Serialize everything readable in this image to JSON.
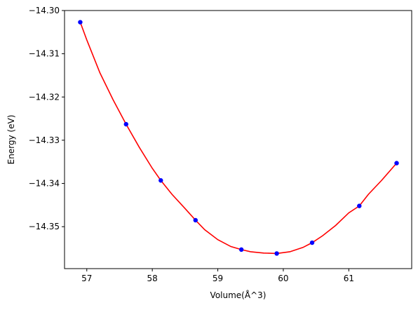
{
  "chart_data": {
    "type": "scatter",
    "title": "",
    "xlabel": "Volume(Å^3)",
    "ylabel": "Energy (eV)",
    "xlim": [
      56.66,
      61.96
    ],
    "ylim": [
      -14.3597,
      -14.3
    ],
    "x_ticks": [
      57,
      58,
      59,
      60,
      61
    ],
    "x_tick_labels": [
      "57",
      "58",
      "59",
      "60",
      "61"
    ],
    "y_ticks": [
      -14.3,
      -14.31,
      -14.32,
      -14.33,
      -14.34,
      -14.35
    ],
    "y_tick_labels": [
      "−14.30",
      "−14.31",
      "−14.32",
      "−14.33",
      "−14.34",
      "−14.35"
    ],
    "grid": false,
    "series": [
      {
        "kind": "points",
        "color": "#0000ff",
        "x": [
          56.9,
          57.6,
          58.13,
          58.66,
          59.36,
          59.9,
          60.44,
          61.16,
          61.73
        ],
        "y": [
          -14.3027,
          -14.3263,
          -14.3393,
          -14.3485,
          -14.3553,
          -14.3562,
          -14.3537,
          -14.3452,
          -14.3353
        ]
      },
      {
        "kind": "fit-curve",
        "color": "#ff0000",
        "x": [
          56.9,
          57.0,
          57.2,
          57.4,
          57.6,
          57.8,
          58.0,
          58.13,
          58.3,
          58.5,
          58.66,
          58.8,
          59.0,
          59.2,
          59.36,
          59.5,
          59.7,
          59.9,
          60.1,
          60.3,
          60.44,
          60.6,
          60.8,
          61.0,
          61.16,
          61.3,
          61.5,
          61.73
        ],
        "y": [
          -14.3027,
          -14.3068,
          -14.3144,
          -14.3206,
          -14.3263,
          -14.3316,
          -14.3365,
          -14.3393,
          -14.3425,
          -14.3458,
          -14.3485,
          -14.3507,
          -14.353,
          -14.3546,
          -14.3553,
          -14.3558,
          -14.3561,
          -14.3562,
          -14.3558,
          -14.3548,
          -14.3537,
          -14.3521,
          -14.3497,
          -14.3468,
          -14.3452,
          -14.3425,
          -14.3393,
          -14.3353
        ]
      }
    ]
  }
}
